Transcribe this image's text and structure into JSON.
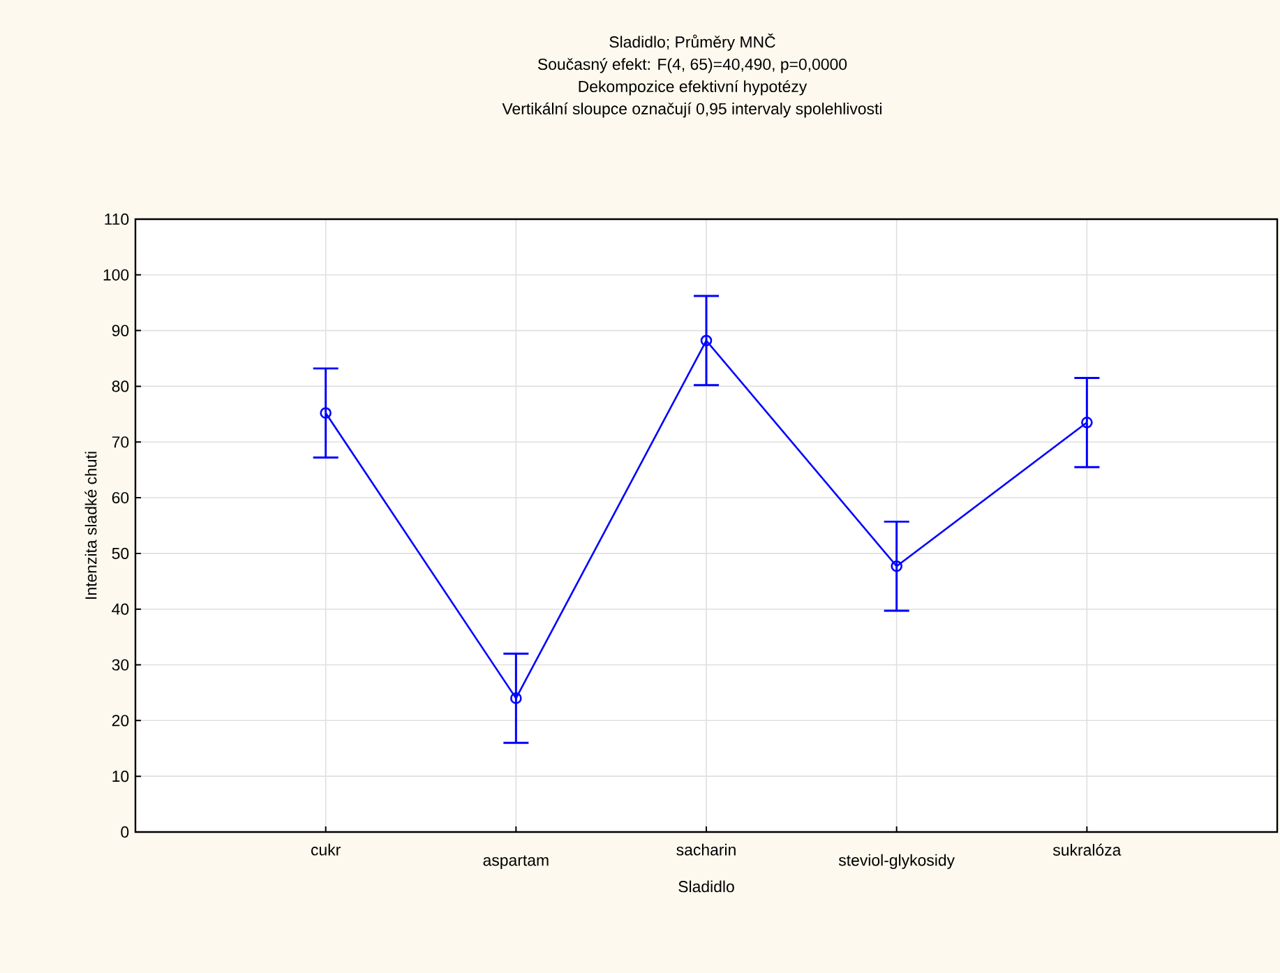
{
  "chart_data": {
    "type": "line",
    "title": "Sladidlo; Průměry MNČ",
    "subtitle": "Současný efekt: F(4, 65)=40,490, p=0,0000",
    "annotations": [
      "Dekompozice efektivní hypotézy",
      "Vertikální sloupce označují 0,95 intervaly spolehlivosti"
    ],
    "xlabel": "Sladidlo",
    "ylabel": "Intenzita sladké chuti",
    "categories": [
      "cukr",
      "aspartam",
      "sacharin",
      "steviol-glykosidy",
      "sukralóza"
    ],
    "series": [
      {
        "color": "#0000ff",
        "values": [
          75.2,
          24.0,
          88.2,
          47.7,
          73.5
        ],
        "errors": [
          8,
          8,
          8,
          8,
          8
        ]
      }
    ],
    "ylim": [
      0,
      110
    ],
    "yticks": [
      0,
      10,
      20,
      30,
      40,
      50,
      60,
      70,
      80,
      90,
      100,
      110
    ],
    "grid": true,
    "marker": "circle",
    "line_style": "solid"
  }
}
